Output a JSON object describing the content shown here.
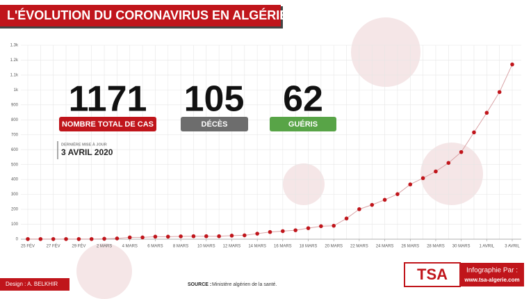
{
  "chart_data": {
    "type": "line",
    "title": "L'ÉVOLUTION DU CORONAVIRUS EN ALGÉRIE",
    "categories": [
      "25 FÉV",
      null,
      "27 FÉV",
      null,
      "29 FÉV",
      null,
      "2 MARS",
      null,
      "4 MARS",
      null,
      "6 MARS",
      null,
      "8 MARS",
      null,
      "10 MARS",
      null,
      "12 MARS",
      null,
      "14 MARS",
      null,
      "16 MARS",
      null,
      "18 MARS",
      null,
      "20 MARS",
      null,
      "22 MARS",
      null,
      "24 MARS",
      null,
      "26 MARS",
      null,
      "28 MARS",
      null,
      "30 MARS",
      null,
      "1 AVRIL",
      null,
      "3 AVRIL"
    ],
    "values": [
      1,
      1,
      1,
      1,
      1,
      1,
      3,
      5,
      12,
      12,
      17,
      17,
      19,
      20,
      20,
      20,
      24,
      26,
      37,
      48,
      54,
      60,
      74,
      87,
      90,
      139,
      201,
      230,
      264,
      302,
      367,
      409,
      454,
      511,
      584,
      716,
      847,
      986,
      1171
    ],
    "color": "#c0151b",
    "line_color": "#d9a3a6",
    "ylim": [
      0,
      1300
    ],
    "yticks": [
      0,
      100,
      200,
      300,
      400,
      500,
      600,
      700,
      800,
      900,
      {
        "value": 1000,
        "label": "1k"
      },
      {
        "value": 1100,
        "label": "1.1k"
      },
      {
        "value": 1200,
        "label": "1.2k"
      },
      {
        "value": 1300,
        "label": "1.3k"
      }
    ],
    "grid": true
  },
  "stats": [
    {
      "number": "1171",
      "label": "NOMBRE TOTAL DE CAS",
      "color": "#c0151b"
    },
    {
      "number": "105",
      "label": "DÉCÈS",
      "color": "#6d6d6d"
    },
    {
      "number": "62",
      "label": "GUÉRIS",
      "color": "#58a447"
    }
  ],
  "update": {
    "label": "DERNIÈRE MISE À JOUR",
    "date": "3 AVRIL 2020"
  },
  "footer": {
    "design": "Design : A. BELKHIR",
    "source_label": "SOURCE :",
    "source": "Ministère algérien de la santé.",
    "logo": "TSA",
    "credit": "Infographie Par :",
    "url": "www.tsa-algerie.com"
  }
}
